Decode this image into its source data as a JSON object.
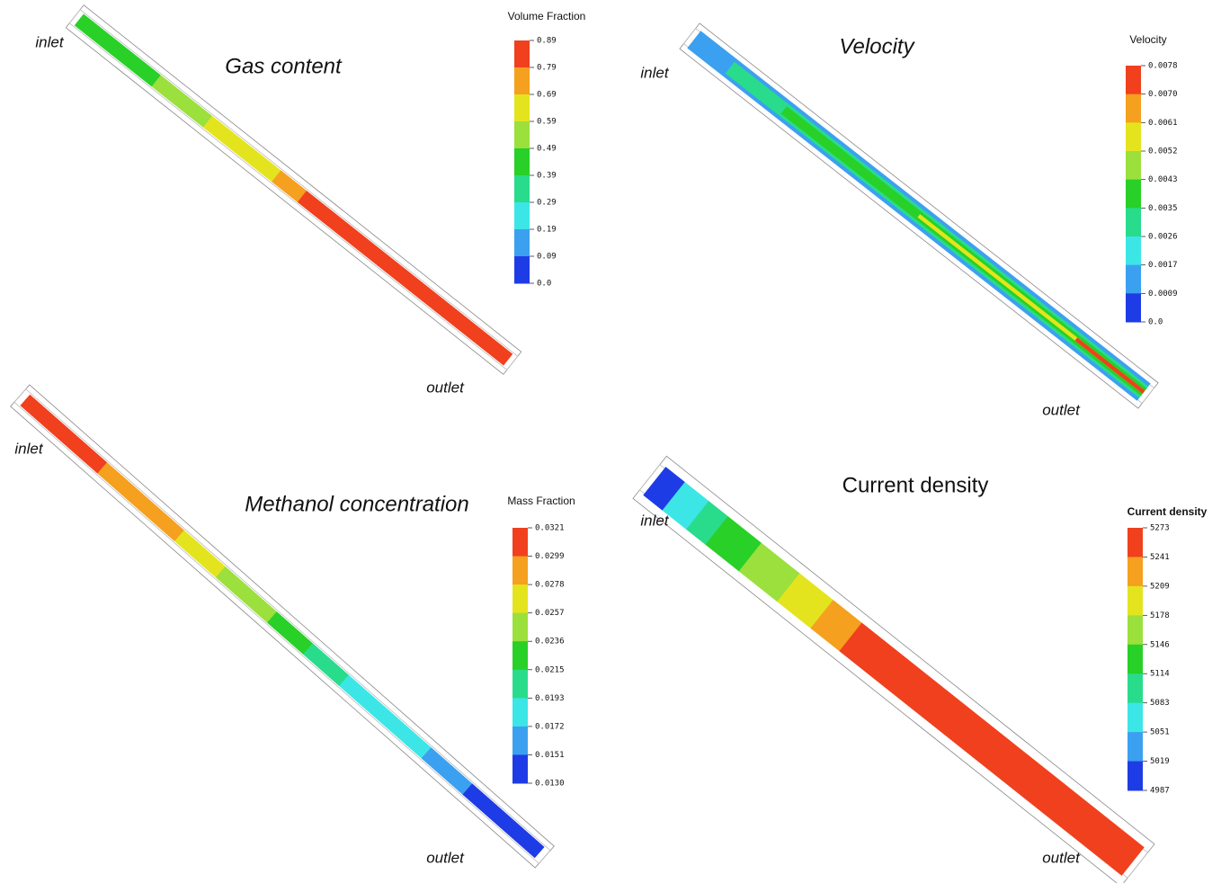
{
  "panels": [
    {
      "title": "Gas content",
      "inlet": "inlet",
      "outlet": "outlet",
      "legend": {
        "title": "Volume Fraction",
        "ticks": [
          "0.89",
          "0.79",
          "0.69",
          "0.59",
          "0.49",
          "0.39",
          "0.29",
          "0.19",
          "0.09",
          "0.0"
        ]
      }
    },
    {
      "title": "Velocity",
      "inlet": "inlet",
      "outlet": "outlet",
      "legend": {
        "title": "Velocity",
        "ticks": [
          "0.0078",
          "0.0070",
          "0.0061",
          "0.0052",
          "0.0043",
          "0.0035",
          "0.0026",
          "0.0017",
          "0.0009",
          "0.0"
        ]
      }
    },
    {
      "title": "Methanol concentration",
      "inlet": "inlet",
      "outlet": "outlet",
      "legend": {
        "title": "Mass Fraction",
        "ticks": [
          "0.0321",
          "0.0299",
          "0.0278",
          "0.0257",
          "0.0236",
          "0.0215",
          "0.0193",
          "0.0172",
          "0.0151",
          "0.0130"
        ]
      }
    },
    {
      "title": "Current density",
      "inlet": "inlet",
      "outlet": "outlet",
      "legend": {
        "title": "Current density",
        "ticks": [
          "5273",
          "5241",
          "5209",
          "5178",
          "5146",
          "5114",
          "5083",
          "5051",
          "5019",
          "4987"
        ]
      }
    }
  ]
}
